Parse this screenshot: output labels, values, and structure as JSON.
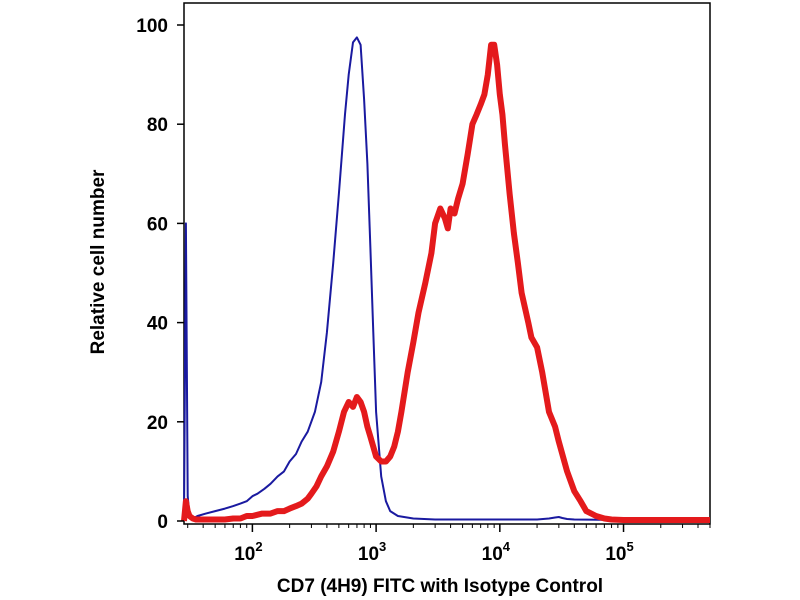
{
  "chart_data": {
    "type": "line",
    "title": "",
    "xlabel": "CD7 (4H9) FITC with Isotype Control",
    "ylabel": "Relative cell number",
    "x_scale": "log",
    "xlim": [
      28,
      500000
    ],
    "ylim": [
      0,
      100
    ],
    "x_ticks": [
      {
        "value": 100,
        "base": "10",
        "exp": "2"
      },
      {
        "value": 1000,
        "base": "10",
        "exp": "3"
      },
      {
        "value": 10000,
        "base": "10",
        "exp": "4"
      },
      {
        "value": 100000,
        "base": "10",
        "exp": "5"
      }
    ],
    "y_ticks": [
      0,
      20,
      40,
      60,
      80,
      100
    ],
    "grid": false,
    "legend": "none",
    "series": [
      {
        "color": "#1a1aa0",
        "x": [
          28,
          29,
          30,
          31,
          33,
          36,
          42,
          50,
          60,
          70,
          80,
          90,
          100,
          110,
          125,
          140,
          160,
          180,
          200,
          225,
          250,
          280,
          320,
          360,
          400,
          450,
          500,
          560,
          600,
          650,
          700,
          750,
          800,
          850,
          900,
          950,
          1000,
          1100,
          1200,
          1300,
          1500,
          2000,
          3000,
          10000,
          20000,
          25000,
          28000,
          30000,
          32000,
          35000,
          40000,
          100000,
          500000
        ],
        "y": [
          0,
          60,
          5,
          1,
          0.5,
          1,
          1.5,
          2,
          2.5,
          3,
          3.5,
          4,
          5,
          5.5,
          6.5,
          7.5,
          9,
          10,
          12,
          13.5,
          16,
          18,
          22,
          28,
          38,
          52,
          66,
          82,
          90,
          96.5,
          97.5,
          96,
          85,
          72,
          55,
          38,
          22,
          9,
          4,
          2,
          1,
          0.5,
          0.3,
          0.3,
          0.3,
          0.5,
          0.7,
          0.8,
          0.6,
          0.4,
          0.3,
          0.2,
          0.2
        ]
      },
      {
        "color": "#e41a1c",
        "x": [
          28,
          29,
          30,
          31,
          33,
          35,
          40,
          50,
          60,
          70,
          80,
          90,
          100,
          120,
          140,
          160,
          180,
          200,
          225,
          250,
          280,
          300,
          330,
          360,
          400,
          450,
          500,
          550,
          600,
          650,
          700,
          750,
          800,
          850,
          900,
          1000,
          1100,
          1200,
          1300,
          1400,
          1500,
          1600,
          1800,
          2000,
          2200,
          2500,
          2800,
          3000,
          3300,
          3600,
          3800,
          4000,
          4300,
          4600,
          5000,
          5500,
          6000,
          6500,
          7000,
          7500,
          8000,
          8500,
          9000,
          9500,
          10000,
          10500,
          11000,
          12000,
          13000,
          14000,
          15000,
          17000,
          18000,
          20000,
          22000,
          25000,
          28000,
          30000,
          35000,
          40000,
          45000,
          50000,
          60000,
          70000,
          80000,
          100000,
          200000,
          500000
        ],
        "y": [
          0,
          4,
          2,
          1,
          0.5,
          0.3,
          0.3,
          0.3,
          0.3,
          0.5,
          0.5,
          1,
          1,
          1.5,
          1.5,
          2,
          2,
          2.5,
          3,
          3.5,
          4.5,
          5.5,
          7,
          9,
          11,
          14,
          18,
          22,
          24,
          23,
          25,
          24,
          22,
          19,
          17,
          13,
          12,
          12,
          13,
          15,
          18,
          22,
          30,
          36,
          42,
          48,
          54,
          60,
          63,
          61,
          59,
          63,
          62,
          65,
          68,
          74,
          80,
          82,
          84,
          86,
          90,
          96,
          96,
          92,
          86,
          82,
          76,
          66,
          58,
          52,
          46,
          40,
          37,
          35,
          30,
          22,
          19,
          16,
          10,
          6,
          4,
          2,
          1,
          0.5,
          0.3,
          0.2,
          0.2,
          0.2
        ]
      }
    ]
  }
}
